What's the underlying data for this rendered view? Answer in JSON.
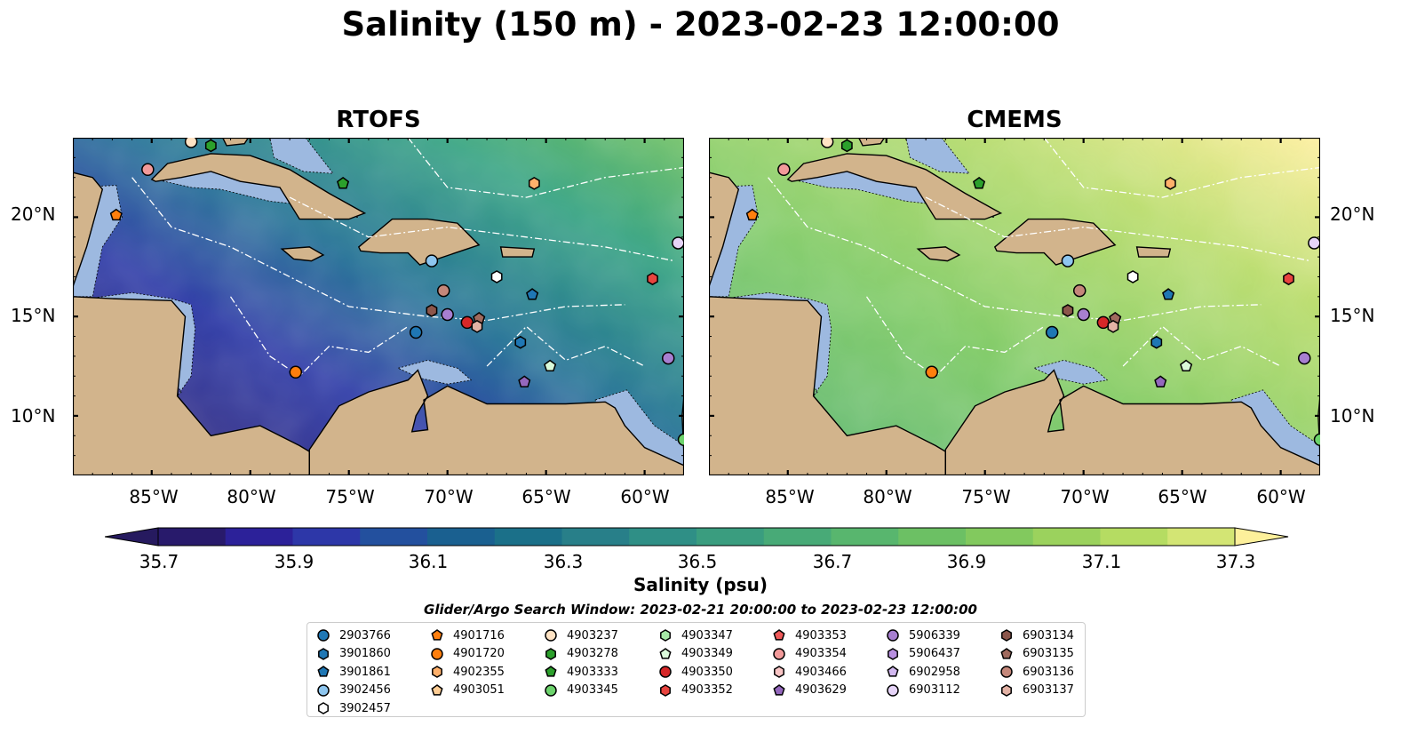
{
  "title": "Salinity (150 m) - 2023-02-23 12:00:00",
  "panels": [
    {
      "title": "RTOFS",
      "palette": [
        {
          "stop": 0.0,
          "color": "#2a1a6a"
        },
        {
          "stop": 0.35,
          "color": "#2d3aa6"
        },
        {
          "stop": 0.55,
          "color": "#1f6e93"
        },
        {
          "stop": 0.8,
          "color": "#30a07e"
        },
        {
          "stop": 1.0,
          "color": "#6cbf61"
        }
      ]
    },
    {
      "title": "CMEMS",
      "palette": [
        {
          "stop": 0.0,
          "color": "#4fae6f"
        },
        {
          "stop": 0.4,
          "color": "#7cc964"
        },
        {
          "stop": 0.75,
          "color": "#b9dc6a"
        },
        {
          "stop": 1.0,
          "color": "#fdee99"
        }
      ]
    }
  ],
  "map": {
    "lat_labels": [
      "20°N",
      "15°N",
      "10°N"
    ],
    "lon_labels": [
      "85°W",
      "80°W",
      "75°W",
      "70°W",
      "65°W",
      "60°W"
    ],
    "extent": {
      "lon": [
        -89,
        -58
      ],
      "lat": [
        7,
        24
      ]
    },
    "land_color": "#d2b48c",
    "shelf_color": "#9db9e0"
  },
  "colorbar": {
    "label": "Salinity (psu)",
    "ticks": [
      "35.7",
      "35.9",
      "36.1",
      "36.3",
      "36.5",
      "36.7",
      "36.9",
      "37.1",
      "37.3"
    ],
    "colors": [
      "#281a6b",
      "#2c2199",
      "#2d37a8",
      "#23509e",
      "#1a6090",
      "#1b7089",
      "#287f89",
      "#2f8f86",
      "#3a9d7f",
      "#48aa77",
      "#58b66e",
      "#6cc064",
      "#82c95e",
      "#9bd25d",
      "#b5dc62",
      "#d3e574"
    ],
    "extend_low": "#261a5f",
    "extend_high": "#fdf09b"
  },
  "search_window": "Glider/Argo Search Window: 2023-02-21 20:00:00 to 2023-02-23 12:00:00",
  "legend": [
    [
      "2903766",
      "#1f77b4",
      "circle"
    ],
    [
      "3901860",
      "#1f77b4",
      "hexagon"
    ],
    [
      "3901861",
      "#1f77b4",
      "pentagon"
    ],
    [
      "3902456",
      "#8ec6ef",
      "circle"
    ],
    [
      "3902457",
      "#ffffff",
      "hexagon"
    ],
    [
      "4901716",
      "#ff7f0e",
      "pentagon"
    ],
    [
      "4901720",
      "#ff7f0e",
      "circle"
    ],
    [
      "4902355",
      "#ffb06b",
      "hexagon"
    ],
    [
      "4903051",
      "#ffcd94",
      "pentagon"
    ],
    [
      "4903237",
      "#ffe3c4",
      "circle"
    ],
    [
      "4903278",
      "#2ca02c",
      "hexagon"
    ],
    [
      "4903333",
      "#2ca02c",
      "pentagon"
    ],
    [
      "4903345",
      "#6cd36c",
      "circle"
    ],
    [
      "4903347",
      "#a6e8a6",
      "hexagon"
    ],
    [
      "4903349",
      "#dafada",
      "pentagon"
    ],
    [
      "4903350",
      "#d62728",
      "circle"
    ],
    [
      "4903352",
      "#e8443f",
      "hexagon"
    ],
    [
      "4903353",
      "#f05a5a",
      "pentagon"
    ],
    [
      "4903354",
      "#f29a9a",
      "circle"
    ],
    [
      "4903466",
      "#f8c4c4",
      "hexagon"
    ],
    [
      "4903629",
      "#9467bd",
      "pentagon"
    ],
    [
      "5906339",
      "#a77fd0",
      "circle"
    ],
    [
      "5906437",
      "#b88fe0",
      "hexagon"
    ],
    [
      "6902958",
      "#d2b8f0",
      "pentagon"
    ],
    [
      "6903112",
      "#e6d4f8",
      "circle"
    ],
    [
      "6903134",
      "#8c564b",
      "hexagon"
    ],
    [
      "6903135",
      "#a06a5e",
      "pentagon"
    ],
    [
      "6903136",
      "#c4877a",
      "circle"
    ],
    [
      "6903137",
      "#e3b2a5",
      "hexagon"
    ]
  ],
  "floats": [
    {
      "lon": -85.2,
      "lat": 22.4,
      "color": "#f29a9a",
      "shape": "circle"
    },
    {
      "lon": -86.8,
      "lat": 20.1,
      "color": "#ff7f0e",
      "shape": "pentagon"
    },
    {
      "lon": -83.0,
      "lat": 23.8,
      "color": "#ffe3c4",
      "shape": "circle"
    },
    {
      "lon": -82.0,
      "lat": 23.6,
      "color": "#2ca02c",
      "shape": "hexagon"
    },
    {
      "lon": -75.3,
      "lat": 21.7,
      "color": "#2ca02c",
      "shape": "pentagon"
    },
    {
      "lon": -65.6,
      "lat": 21.7,
      "color": "#ffb06b",
      "shape": "hexagon"
    },
    {
      "lon": -58.3,
      "lat": 18.7,
      "color": "#e6d4f8",
      "shape": "circle"
    },
    {
      "lon": -70.8,
      "lat": 17.8,
      "color": "#8ec6ef",
      "shape": "circle"
    },
    {
      "lon": -67.5,
      "lat": 17.0,
      "color": "#ffffff",
      "shape": "hexagon"
    },
    {
      "lon": -59.6,
      "lat": 16.9,
      "color": "#e8443f",
      "shape": "hexagon"
    },
    {
      "lon": -70.2,
      "lat": 16.3,
      "color": "#c4877a",
      "shape": "circle"
    },
    {
      "lon": -65.7,
      "lat": 16.1,
      "color": "#1f77b4",
      "shape": "pentagon"
    },
    {
      "lon": -70.8,
      "lat": 15.3,
      "color": "#8c564b",
      "shape": "hexagon"
    },
    {
      "lon": -70.0,
      "lat": 15.1,
      "color": "#a77fd0",
      "shape": "circle"
    },
    {
      "lon": -69.0,
      "lat": 14.7,
      "color": "#d62728",
      "shape": "circle"
    },
    {
      "lon": -68.4,
      "lat": 14.9,
      "color": "#a06a5e",
      "shape": "pentagon"
    },
    {
      "lon": -68.5,
      "lat": 14.5,
      "color": "#e3b2a5",
      "shape": "hexagon"
    },
    {
      "lon": -71.6,
      "lat": 14.2,
      "color": "#1f77b4",
      "shape": "circle"
    },
    {
      "lon": -66.3,
      "lat": 13.7,
      "color": "#1f77b4",
      "shape": "hexagon"
    },
    {
      "lon": -58.8,
      "lat": 12.9,
      "color": "#a77fd0",
      "shape": "circle"
    },
    {
      "lon": -64.8,
      "lat": 12.5,
      "color": "#dafada",
      "shape": "pentagon"
    },
    {
      "lon": -77.7,
      "lat": 12.2,
      "color": "#ff7f0e",
      "shape": "circle"
    },
    {
      "lon": -66.1,
      "lat": 11.7,
      "color": "#9467bd",
      "shape": "pentagon"
    },
    {
      "lon": -58.0,
      "lat": 8.8,
      "color": "#6cd36c",
      "shape": "circle"
    }
  ]
}
